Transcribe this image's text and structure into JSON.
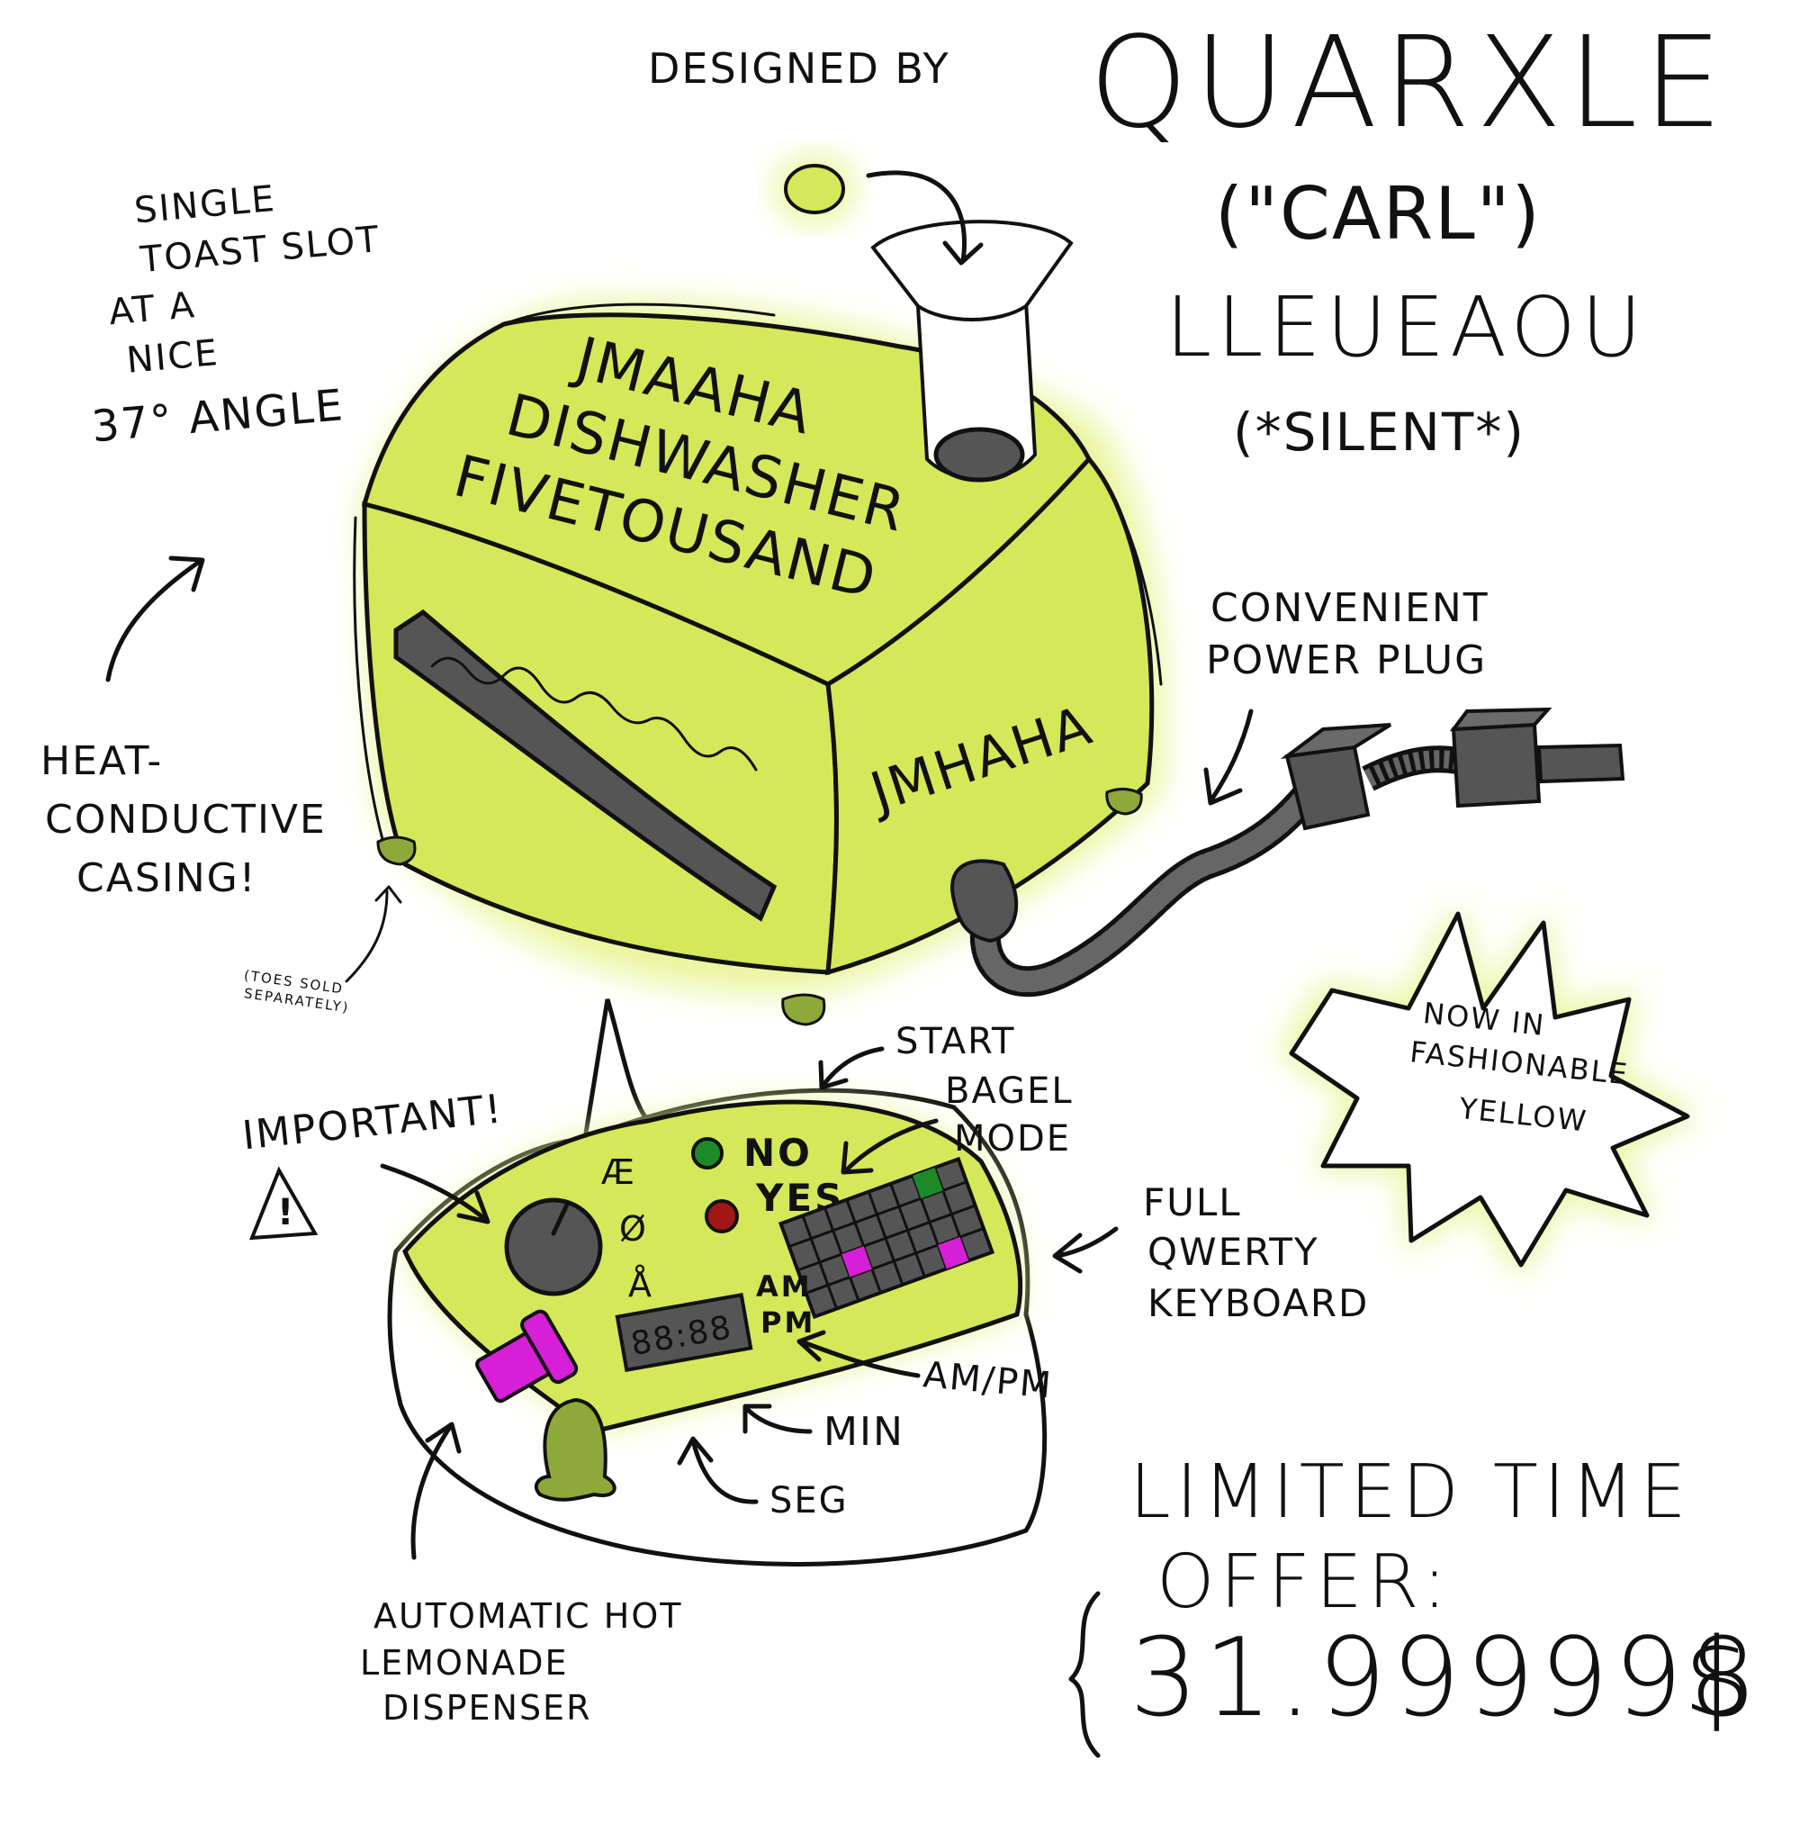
{
  "header": {
    "designed_by": "DESIGNED BY",
    "name_line1": "QUARXLE",
    "name_line2": "(\"CARL\")",
    "name_line3": "LLEUEAOU",
    "name_line4": "(*SILENT*)"
  },
  "toaster": {
    "brand_line1": "JMAAHA",
    "brand_line2": "DISHWASHER",
    "brand_line3": "FIVETOUSAND",
    "side_label": "JMHAHA"
  },
  "callouts": {
    "slot": [
      "SINGLE",
      "TOAST SLOT",
      "AT A",
      "NICE",
      "37° ANGLE"
    ],
    "casing": [
      "HEAT-",
      "CONDUCTIVE",
      "CASING!"
    ],
    "toes": [
      "(TOES SOLD",
      "SEPARATELY)"
    ],
    "plug": [
      "CONVENIENT",
      "POWER PLUG"
    ],
    "important": "IMPORTANT!",
    "warning_symbol": "!",
    "start": "START",
    "bagel": [
      "BAGEL",
      "MODE"
    ],
    "keyboard": [
      "FULL",
      "QWERTY",
      "KEYBOARD"
    ],
    "ampm": "AM/PM",
    "min": "MIN",
    "seg": "SEG",
    "lemonade": [
      "AUTOMATIC HOT",
      "LEMONADE",
      "DISPENSER"
    ]
  },
  "panel": {
    "dial_labels": [
      "Æ",
      "Ø",
      "Å"
    ],
    "no_label": "NO",
    "yes_label": "YES",
    "am_label": "AM",
    "pm_label": "PM",
    "clock_display": "88:88"
  },
  "burst": {
    "line1": "NOW IN",
    "line2": "FASHIONABLE",
    "line3": "YELLOW"
  },
  "offer": {
    "line1": "LIMITED TIME",
    "line2": "OFFER:",
    "price": "31.999998",
    "currency": "$"
  },
  "colors": {
    "lime": "#d4e85a",
    "glow": "#e9f59b",
    "dark_gray": "#555555",
    "magenta": "#d61fd6",
    "green_button": "#1d8a2a",
    "red_button": "#a31616",
    "toe_green": "#8fa83a"
  }
}
